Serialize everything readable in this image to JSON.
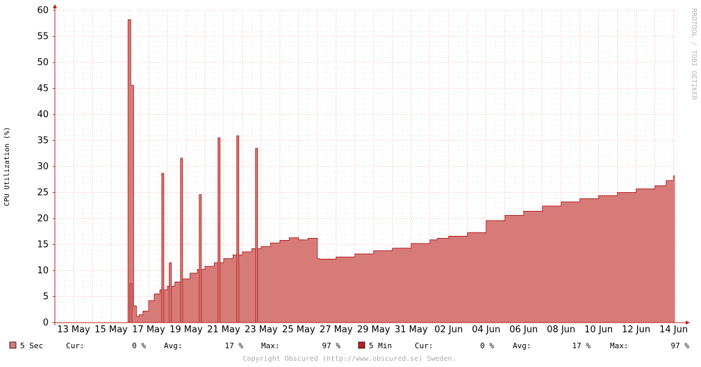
{
  "chart_data": {
    "type": "area",
    "ylabel": "CPU Utilization (%)",
    "ylim": [
      0,
      60
    ],
    "y_ticks": [
      "0",
      "5",
      "10",
      "15",
      "20",
      "25",
      "30",
      "35",
      "40",
      "45",
      "50",
      "55",
      "60"
    ],
    "x_ticks": [
      "13 May",
      "15 May",
      "17 May",
      "19 May",
      "21 May",
      "23 May",
      "25 May",
      "27 May",
      "29 May",
      "31 May",
      "02 Jun",
      "04 Jun",
      "06 Jun",
      "08 Jun",
      "10 Jun",
      "12 Jun",
      "14 Jun"
    ],
    "x_range_days": [
      0,
      33.2
    ],
    "grid": true,
    "series_color": "#d77b78",
    "series_line_color": "#b22222",
    "series": [
      {
        "name": "5 Sec",
        "x_days": [
          0,
          3.8,
          3.9,
          4.05,
          4.2,
          4.35,
          4.5,
          4.7,
          5.0,
          5.3,
          5.6,
          6.0,
          6.4,
          6.8,
          7.2,
          7.6,
          8.0,
          8.5,
          9.0,
          9.5,
          10.0,
          10.5,
          11.0,
          11.5,
          12.0,
          12.5,
          13.0,
          13.5,
          14.0,
          14.1,
          15.0,
          16.0,
          17.0,
          18.0,
          19.0,
          20.0,
          20.4,
          21.0,
          22.0,
          23.0,
          24.0,
          25.0,
          26.0,
          27.0,
          28.0,
          29.0,
          30.0,
          31.0,
          32.0,
          32.6,
          33.0
        ],
        "y": [
          0,
          0,
          58.2,
          45.6,
          3.2,
          1.2,
          1.5,
          2.2,
          4.2,
          5.5,
          6.3,
          7.0,
          7.8,
          8.4,
          9.5,
          10.2,
          10.8,
          11.5,
          12.3,
          13.0,
          13.6,
          14.2,
          14.6,
          15.3,
          15.8,
          16.3,
          15.9,
          16.2,
          12.3,
          12.2,
          12.6,
          13.2,
          13.8,
          14.3,
          15.2,
          15.9,
          16.2,
          16.6,
          17.3,
          19.6,
          20.6,
          21.4,
          22.4,
          23.2,
          23.8,
          24.4,
          25.0,
          25.7,
          26.3,
          27.3,
          28.2
        ],
        "spikes": [
          {
            "x_day": 4.0,
            "y": 7.5
          },
          {
            "x_day": 5.7,
            "y": 28.7
          },
          {
            "x_day": 6.1,
            "y": 11.5
          },
          {
            "x_day": 6.7,
            "y": 31.6
          },
          {
            "x_day": 7.7,
            "y": 24.6
          },
          {
            "x_day": 8.7,
            "y": 35.5
          },
          {
            "x_day": 9.7,
            "y": 35.9
          },
          {
            "x_day": 10.7,
            "y": 33.5
          }
        ]
      }
    ],
    "watermark": "RRDTOOL / TOBI OETIKER"
  },
  "legend": {
    "items": [
      {
        "name": "5 Sec",
        "color": "#d77b78",
        "cur_label": "Cur:",
        "cur": "0 %",
        "avg_label": "Avg:",
        "avg": "17 %",
        "max_label": "Max:",
        "max": "97 %"
      },
      {
        "name": "5 Min",
        "color": "#c0201f",
        "cur_label": "Cur:",
        "cur": "0 %",
        "avg_label": "Avg:",
        "avg": "17 %",
        "max_label": "Max:",
        "max": "97 %"
      }
    ]
  },
  "footer": {
    "copyright": "Copyright Obscured (http://www.obscured.se) Sweden."
  }
}
